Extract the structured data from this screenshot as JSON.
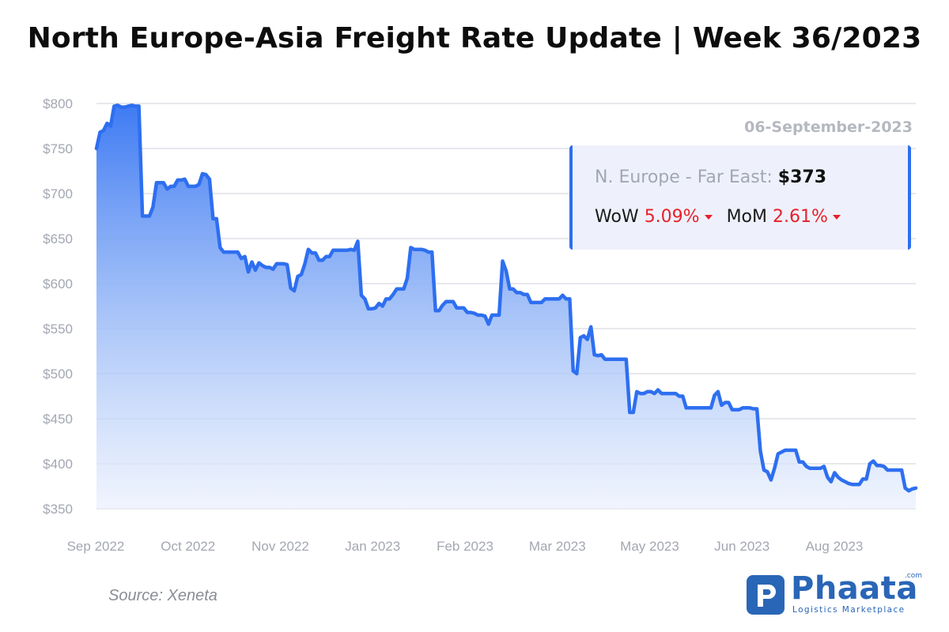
{
  "title": "North Europe-Asia Freight Rate Update | Week 36/2023",
  "date_label": "06-September-2023",
  "info_box": {
    "route_label": "N. Europe - Far East:",
    "price": "$373",
    "wow_label": "WoW",
    "wow_value": "5.09%",
    "mom_label": "MoM",
    "mom_value": "2.61%"
  },
  "source": "Source: Xeneta",
  "logo": {
    "name": "Phaata",
    "domain": ".com",
    "tagline": "Logistics Marketplace"
  },
  "colors": {
    "line": "#2e6ff0",
    "decrease": "#e8202a",
    "grid": "#dfe1e6",
    "tick": "#a3a7b1",
    "brand": "#2a66b7"
  },
  "chart_data": {
    "type": "area",
    "ylim": [
      350,
      800
    ],
    "yticks": [
      800,
      750,
      700,
      650,
      600,
      550,
      500,
      450,
      400,
      350
    ],
    "ytick_labels": [
      "$800",
      "$750",
      "$700",
      "$650",
      "$600",
      "$550",
      "$500",
      "$450",
      "$400",
      "$350"
    ],
    "xtick_labels": [
      "Sep 2022",
      "Oct 2022",
      "Nov 2022",
      "Jan 2023",
      "Feb 2023",
      "Mar 2023",
      "May 2023",
      "Jun 2023",
      "Aug 2023"
    ],
    "x_range": [
      "2022-09-01",
      "2023-09-06"
    ],
    "grid": true,
    "series": [
      {
        "values": [
          750,
          768,
          770,
          778,
          775,
          797,
          798,
          796,
          796,
          797,
          798,
          797,
          797,
          675,
          675,
          675,
          685,
          712,
          712,
          712,
          705,
          708,
          708,
          715,
          715,
          716,
          708,
          708,
          708,
          710,
          722,
          721,
          716,
          672,
          672,
          640,
          635,
          635,
          635,
          635,
          635,
          628,
          630,
          613,
          624,
          615,
          623,
          620,
          618,
          618,
          616,
          622,
          622,
          622,
          621,
          595,
          592,
          608,
          610,
          622,
          638,
          634,
          634,
          626,
          626,
          630,
          630,
          637,
          637,
          637,
          637,
          637,
          638,
          637,
          647,
          587,
          583,
          572,
          572,
          573,
          578,
          575,
          583,
          583,
          588,
          594,
          594,
          594,
          606,
          640,
          638,
          638,
          638,
          637,
          635,
          635,
          570,
          570,
          576,
          580,
          580,
          580,
          573,
          573,
          573,
          568,
          568,
          567,
          565,
          565,
          564,
          555,
          565,
          565,
          565,
          625,
          614,
          594,
          594,
          590,
          590,
          588,
          588,
          579,
          579,
          579,
          579,
          583,
          583,
          583,
          583,
          583,
          587,
          583,
          583,
          503,
          500,
          540,
          542,
          538,
          552,
          521,
          520,
          521,
          516,
          516,
          516,
          516,
          516,
          516,
          516,
          457,
          457,
          480,
          478,
          478,
          480,
          480,
          478,
          482,
          478,
          478,
          478,
          478,
          478,
          475,
          475,
          462,
          462,
          462,
          462,
          462,
          462,
          462,
          462,
          476,
          480,
          465,
          468,
          468,
          460,
          460,
          460,
          462,
          462,
          462,
          461,
          461,
          414,
          393,
          391,
          382,
          395,
          411,
          413,
          415,
          415,
          415,
          415,
          402,
          402,
          397,
          395,
          395,
          395,
          395,
          397,
          385,
          380,
          390,
          385,
          382,
          380,
          378,
          377,
          377,
          377,
          383,
          383,
          400,
          403,
          398,
          398,
          397,
          393,
          393,
          393,
          393,
          393,
          373,
          370,
          372,
          373
        ]
      }
    ]
  }
}
